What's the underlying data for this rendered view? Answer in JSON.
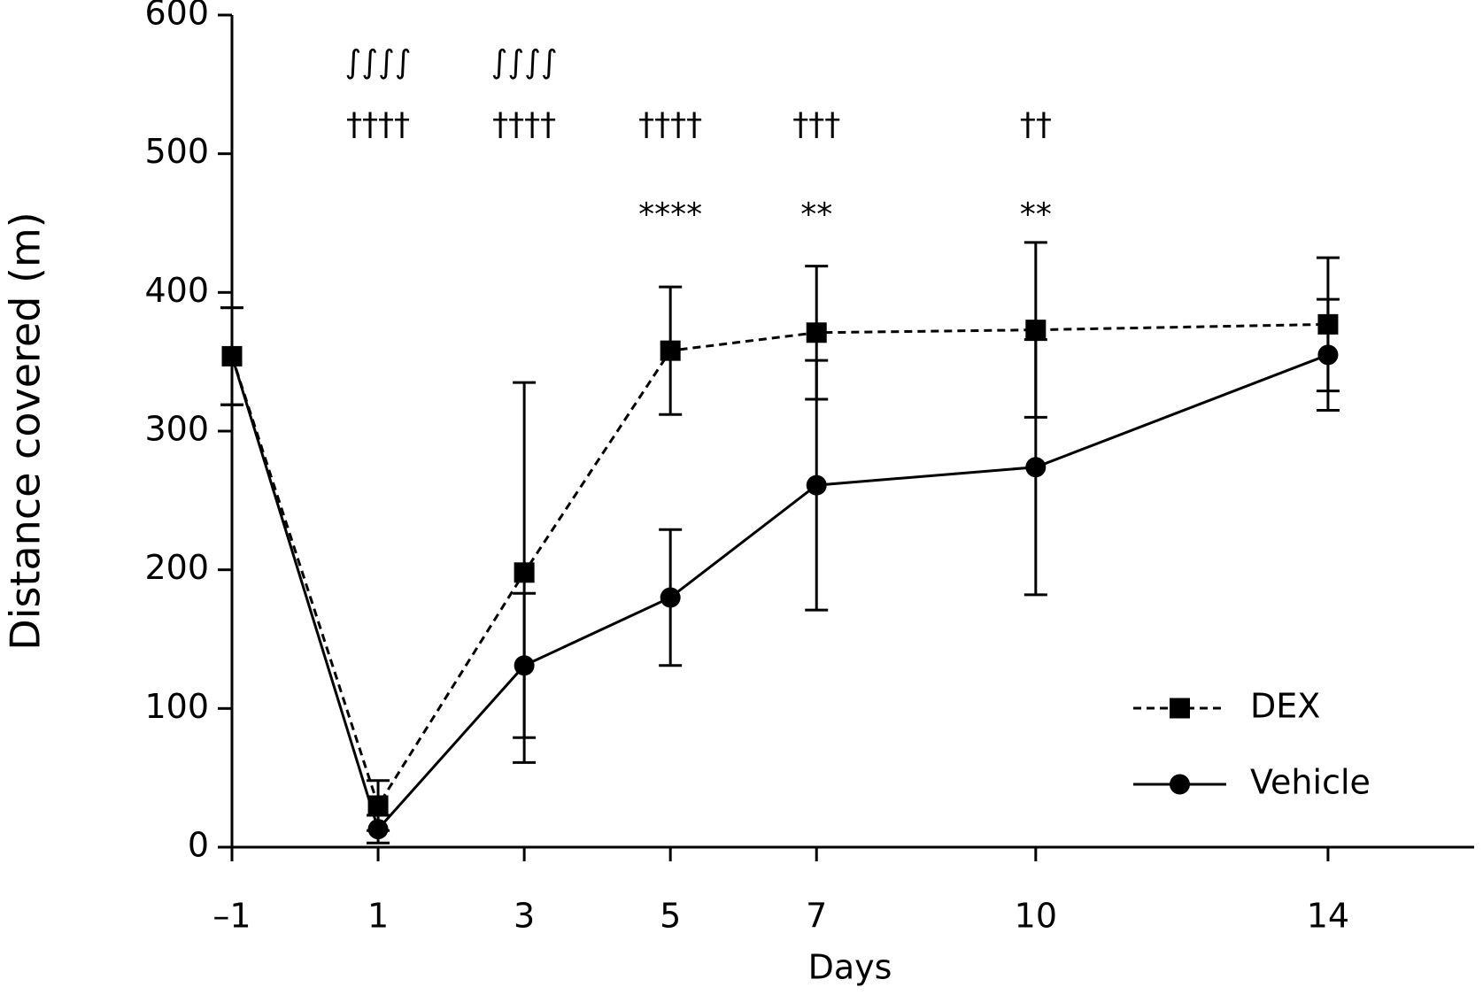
{
  "chart_data": {
    "type": "line",
    "xlabel": "Days",
    "ylabel": "Distance covered (m)",
    "xlim": [
      -1,
      16
    ],
    "xticks": [
      {
        "value": -1,
        "label": "–1"
      },
      1,
      3,
      5,
      7,
      10,
      14
    ],
    "ylim": [
      0,
      600
    ],
    "yticks": [
      0,
      100,
      200,
      300,
      400,
      500,
      600
    ],
    "x": [
      -1,
      1,
      3,
      5,
      7,
      10,
      14
    ],
    "legend": "lower right",
    "series": [
      {
        "name": "DEX",
        "color": "#000000",
        "linestyle": "dashed",
        "marker": "square",
        "values": [
          354,
          30,
          198,
          358,
          371,
          373,
          377
        ],
        "errors": [
          35,
          18,
          137,
          46,
          48,
          63,
          48
        ]
      },
      {
        "name": "Vehicle",
        "color": "#000000",
        "linestyle": "solid",
        "marker": "circle",
        "values": [
          354,
          13,
          131,
          180,
          261,
          274,
          355
        ],
        "errors": [
          35,
          10,
          52,
          49,
          90,
          92,
          40
        ]
      }
    ],
    "annotations": [
      {
        "text": "∫∫∫∫",
        "x": 1,
        "y": 565
      },
      {
        "text": "∫∫∫∫",
        "x": 3,
        "y": 565
      },
      {
        "text": "††††",
        "x": 1,
        "y": 520
      },
      {
        "text": "††††",
        "x": 3,
        "y": 520
      },
      {
        "text": "††††",
        "x": 5,
        "y": 520
      },
      {
        "text": "†††",
        "x": 7,
        "y": 520
      },
      {
        "text": "††",
        "x": 10,
        "y": 520
      },
      {
        "text": "****",
        "x": 5,
        "y": 455
      },
      {
        "text": "**",
        "x": 7,
        "y": 455
      },
      {
        "text": "**",
        "x": 10,
        "y": 455
      }
    ]
  }
}
